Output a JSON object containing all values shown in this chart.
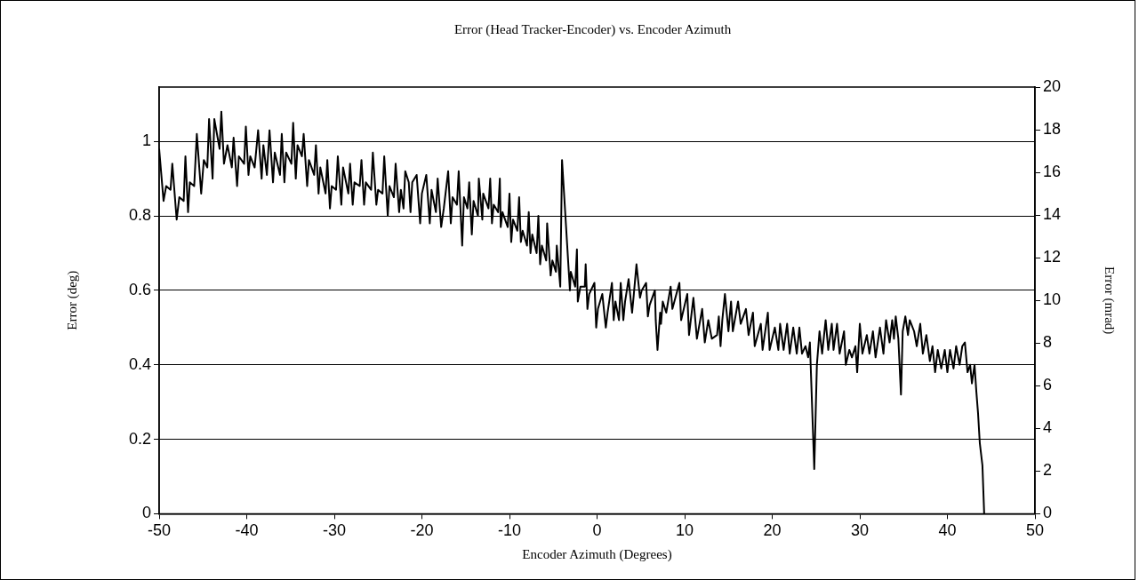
{
  "chart_data": {
    "type": "line",
    "title": "Error (Head Tracker-Encoder) vs. Encoder Azimuth",
    "xlabel": "Encoder Azimuth (Degrees)",
    "ylabel": "Error (deg)",
    "y2label": "Error (mrad)",
    "xlim": [
      -50,
      50
    ],
    "xticks": [
      -50,
      -40,
      -30,
      -20,
      -10,
      0,
      10,
      20,
      30,
      40,
      50
    ],
    "ylim": [
      0,
      1.146
    ],
    "yticks": [
      0,
      0.2,
      0.4,
      0.6,
      0.8,
      1
    ],
    "y2lim": [
      0,
      20
    ],
    "y2ticks": [
      0,
      2,
      4,
      6,
      8,
      10,
      12,
      14,
      16,
      18,
      20
    ],
    "grid": "y",
    "legend": false,
    "marker": "none",
    "line_style": "solid",
    "series": [
      {
        "color": "#000000",
        "x": [
          -50,
          -49.5,
          -49.2,
          -48.7,
          -48.5,
          -48.0,
          -47.7,
          -47.2,
          -47.0,
          -46.7,
          -46.5,
          -46.0,
          -45.7,
          -45.2,
          -44.9,
          -44.5,
          -44.3,
          -43.9,
          -43.7,
          -43.1,
          -42.9,
          -42.6,
          -42.2,
          -41.7,
          -41.5,
          -41.1,
          -40.9,
          -40.3,
          -40.1,
          -39.8,
          -39.6,
          -39.1,
          -38.7,
          -38.3,
          -38.1,
          -37.7,
          -37.4,
          -37.0,
          -36.8,
          -36.2,
          -36.0,
          -35.7,
          -35.5,
          -34.9,
          -34.7,
          -34.4,
          -34.2,
          -33.7,
          -33.5,
          -33.1,
          -32.9,
          -32.3,
          -32.1,
          -31.8,
          -31.6,
          -31.0,
          -30.8,
          -30.5,
          -30.3,
          -29.8,
          -29.6,
          -29.2,
          -29.0,
          -28.4,
          -28.2,
          -27.9,
          -27.7,
          -27.1,
          -26.9,
          -26.6,
          -26.4,
          -25.8,
          -25.6,
          -25.2,
          -25.0,
          -24.5,
          -24.3,
          -23.9,
          -23.7,
          -23.2,
          -23.0,
          -22.6,
          -22.4,
          -22.1,
          -21.9,
          -21.5,
          -21.3,
          -21.1,
          -20.6,
          -20.2,
          -20.0,
          -19.5,
          -19.1,
          -18.9,
          -18.4,
          -18.2,
          -17.8,
          -17.5,
          -17.0,
          -16.7,
          -16.5,
          -16.0,
          -15.8,
          -15.4,
          -15.2,
          -14.8,
          -14.6,
          -14.3,
          -14.1,
          -13.6,
          -13.5,
          -13.1,
          -13.0,
          -12.4,
          -12.2,
          -12.0,
          -11.8,
          -11.3,
          -11.1,
          -11.0,
          -10.8,
          -10.2,
          -10.0,
          -9.8,
          -9.6,
          -9.1,
          -8.9,
          -8.7,
          -8.5,
          -8.0,
          -7.8,
          -7.6,
          -7.4,
          -6.9,
          -6.7,
          -6.5,
          -6.3,
          -5.8,
          -5.7,
          -5.3,
          -5.1,
          -4.7,
          -4.6,
          -4.2,
          -4.0,
          -3.1,
          -3.0,
          -2.5,
          -2.3,
          -2.2,
          -1.9,
          -1.4,
          -1.3,
          -1.1,
          -0.9,
          -0.3,
          -0.1,
          0.1,
          0.6,
          1.0,
          1.2,
          1.7,
          1.9,
          2.1,
          2.5,
          2.7,
          3.0,
          3.2,
          3.6,
          4.0,
          4.2,
          4.5,
          4.9,
          5.1,
          5.6,
          5.8,
          6.0,
          6.6,
          6.7,
          6.9,
          7.2,
          7.3,
          7.5,
          7.9,
          8.4,
          8.6,
          9.4,
          9.6,
          10.3,
          10.5,
          11.0,
          11.4,
          12.0,
          12.3,
          12.7,
          13.1,
          13.7,
          13.9,
          14.1,
          14.3,
          14.6,
          15.0,
          15.3,
          15.5,
          16.1,
          16.4,
          17.0,
          17.3,
          17.8,
          18.0,
          18.7,
          18.9,
          19.5,
          19.7,
          20.3,
          20.7,
          20.9,
          21.3,
          21.7,
          22.0,
          22.4,
          22.8,
          23.1,
          23.4,
          23.8,
          24.1,
          24.3,
          24.8,
          25.1,
          25.4,
          25.7,
          26.1,
          26.4,
          26.8,
          27.0,
          27.4,
          27.7,
          28.2,
          28.4,
          28.8,
          29.1,
          29.5,
          29.7,
          30.0,
          30.3,
          30.8,
          31.1,
          31.5,
          31.8,
          32.3,
          32.7,
          33.0,
          33.4,
          33.7,
          33.9,
          34.1,
          34.4,
          34.7,
          34.9,
          35.2,
          35.5,
          35.7,
          36.2,
          36.5,
          36.9,
          37.2,
          37.6,
          38.0,
          38.3,
          38.6,
          38.9,
          39.3,
          39.7,
          40.0,
          40.3,
          40.7,
          41.0,
          41.4,
          41.7,
          42.0,
          42.3,
          42.6,
          42.8,
          43.1,
          43.3,
          43.5,
          43.7,
          44.0,
          44.2
        ],
        "values": [
          0.98,
          0.84,
          0.88,
          0.87,
          0.94,
          0.79,
          0.85,
          0.84,
          0.96,
          0.81,
          0.89,
          0.88,
          1.02,
          0.86,
          0.95,
          0.93,
          1.06,
          0.9,
          1.06,
          0.98,
          1.08,
          0.94,
          0.99,
          0.93,
          1.01,
          0.88,
          0.96,
          0.94,
          1.04,
          0.91,
          0.96,
          0.93,
          1.03,
          0.9,
          0.99,
          0.91,
          1.03,
          0.89,
          0.97,
          0.91,
          1.02,
          0.89,
          0.97,
          0.94,
          1.05,
          0.9,
          0.99,
          0.96,
          1.02,
          0.88,
          0.95,
          0.91,
          0.99,
          0.86,
          0.93,
          0.86,
          0.95,
          0.82,
          0.88,
          0.87,
          0.96,
          0.83,
          0.93,
          0.86,
          0.94,
          0.83,
          0.89,
          0.88,
          0.95,
          0.83,
          0.89,
          0.87,
          0.97,
          0.83,
          0.87,
          0.86,
          0.96,
          0.8,
          0.88,
          0.85,
          0.94,
          0.81,
          0.87,
          0.82,
          0.92,
          0.89,
          0.81,
          0.89,
          0.91,
          0.78,
          0.86,
          0.91,
          0.78,
          0.87,
          0.81,
          0.9,
          0.77,
          0.82,
          0.92,
          0.78,
          0.85,
          0.83,
          0.92,
          0.72,
          0.85,
          0.82,
          0.89,
          0.75,
          0.84,
          0.8,
          0.9,
          0.79,
          0.86,
          0.82,
          0.9,
          0.78,
          0.83,
          0.81,
          0.9,
          0.77,
          0.81,
          0.77,
          0.86,
          0.73,
          0.79,
          0.76,
          0.85,
          0.73,
          0.76,
          0.72,
          0.81,
          0.7,
          0.75,
          0.7,
          0.8,
          0.67,
          0.72,
          0.68,
          0.78,
          0.64,
          0.68,
          0.65,
          0.72,
          0.61,
          0.95,
          0.6,
          0.65,
          0.61,
          0.71,
          0.57,
          0.61,
          0.61,
          0.67,
          0.55,
          0.59,
          0.62,
          0.5,
          0.55,
          0.59,
          0.5,
          0.54,
          0.62,
          0.52,
          0.57,
          0.52,
          0.62,
          0.52,
          0.57,
          0.63,
          0.54,
          0.59,
          0.67,
          0.58,
          0.6,
          0.62,
          0.53,
          0.56,
          0.6,
          0.52,
          0.44,
          0.54,
          0.51,
          0.57,
          0.54,
          0.61,
          0.55,
          0.62,
          0.52,
          0.59,
          0.48,
          0.58,
          0.47,
          0.55,
          0.46,
          0.52,
          0.47,
          0.48,
          0.53,
          0.45,
          0.52,
          0.59,
          0.49,
          0.57,
          0.49,
          0.57,
          0.51,
          0.55,
          0.48,
          0.54,
          0.45,
          0.51,
          0.44,
          0.54,
          0.44,
          0.5,
          0.44,
          0.51,
          0.44,
          0.51,
          0.43,
          0.5,
          0.43,
          0.5,
          0.43,
          0.45,
          0.42,
          0.46,
          0.12,
          0.4,
          0.49,
          0.43,
          0.52,
          0.44,
          0.51,
          0.44,
          0.51,
          0.43,
          0.49,
          0.4,
          0.44,
          0.42,
          0.45,
          0.38,
          0.51,
          0.43,
          0.48,
          0.43,
          0.49,
          0.42,
          0.5,
          0.43,
          0.52,
          0.46,
          0.52,
          0.47,
          0.53,
          0.47,
          0.32,
          0.49,
          0.53,
          0.48,
          0.52,
          0.49,
          0.45,
          0.51,
          0.43,
          0.48,
          0.41,
          0.45,
          0.38,
          0.44,
          0.39,
          0.44,
          0.38,
          0.44,
          0.39,
          0.45,
          0.4,
          0.45,
          0.46,
          0.38,
          0.4,
          0.35,
          0.4,
          0.33,
          0.27,
          0.19,
          0.13,
          0.0
        ]
      }
    ]
  }
}
